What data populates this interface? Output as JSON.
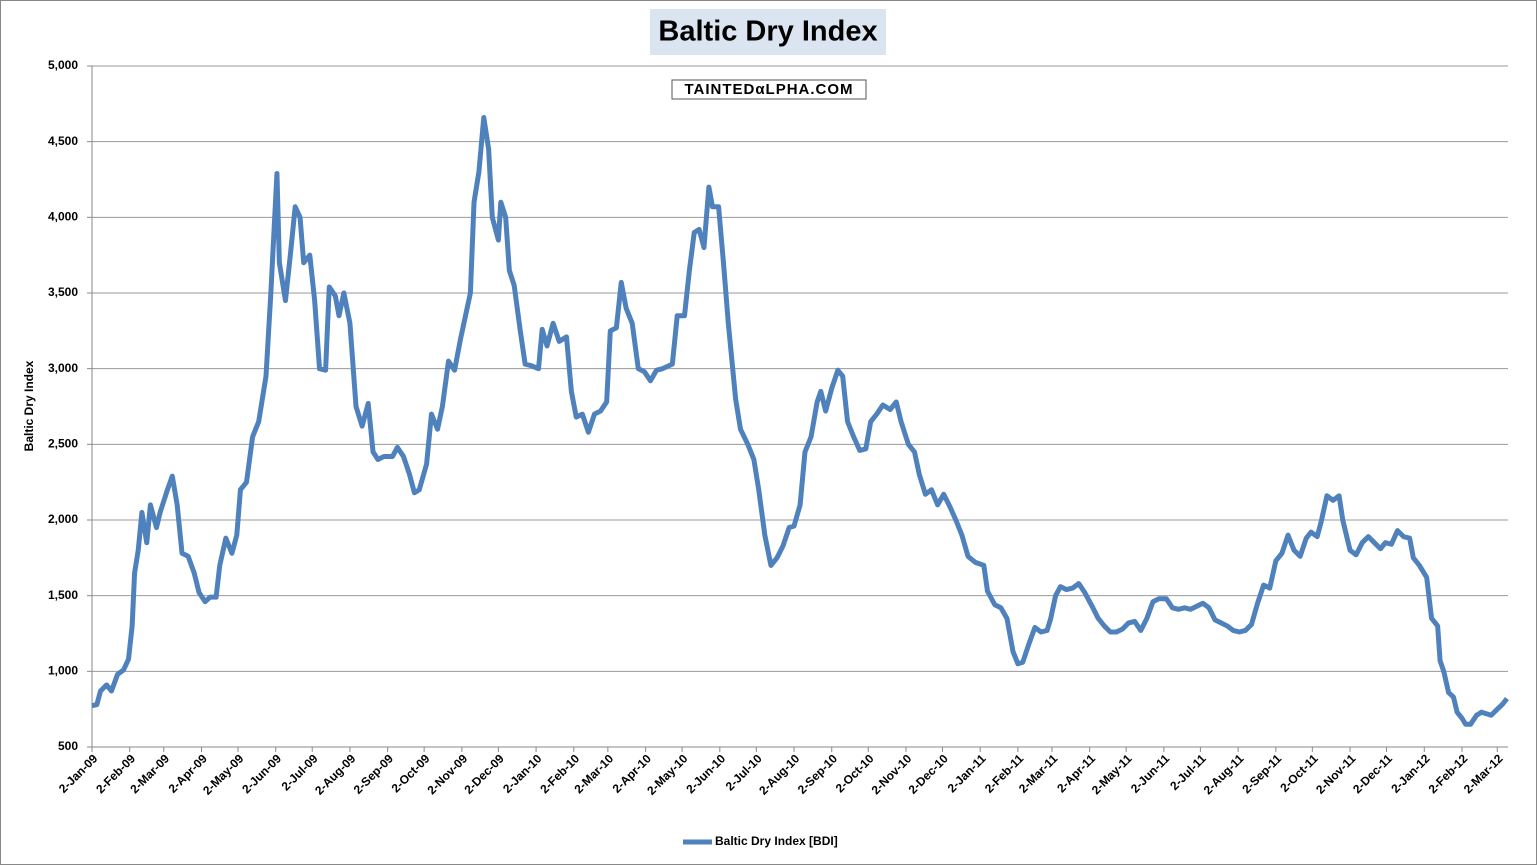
{
  "chart_data": {
    "type": "line",
    "title": "Baltic Dry Index",
    "annotation": "TAINTEDαLPHA.COM",
    "ylabel": "Baltic Dry Index",
    "grid": true,
    "legend": "bottom",
    "ylim": [
      500,
      5000
    ],
    "yticks": [
      500,
      {
        "value": 1000,
        "label": "1,000"
      },
      {
        "value": 1500,
        "label": "1,500"
      },
      {
        "value": 2000,
        "label": "2,000"
      },
      {
        "value": 2500,
        "label": "2,500"
      },
      {
        "value": 3000,
        "label": "3,000"
      },
      {
        "value": 3500,
        "label": "3,500"
      },
      {
        "value": 4000,
        "label": "4,000"
      },
      {
        "value": 4500,
        "label": "4,500"
      },
      {
        "value": 5000,
        "label": "5,000"
      }
    ],
    "xlim": [
      "2009-01-02",
      "2012-03-10"
    ],
    "xticks": [
      {
        "value": "2009-01-02",
        "label": "2-Jan-09"
      },
      {
        "value": "2009-02-02",
        "label": "2-Feb-09"
      },
      {
        "value": "2009-03-02",
        "label": "2-Mar-09"
      },
      {
        "value": "2009-04-02",
        "label": "2-Apr-09"
      },
      {
        "value": "2009-05-02",
        "label": "2-May-09"
      },
      {
        "value": "2009-06-02",
        "label": "2-Jun-09"
      },
      {
        "value": "2009-07-02",
        "label": "2-Jul-09"
      },
      {
        "value": "2009-08-02",
        "label": "2-Aug-09"
      },
      {
        "value": "2009-09-02",
        "label": "2-Sep-09"
      },
      {
        "value": "2009-10-02",
        "label": "2-Oct-09"
      },
      {
        "value": "2009-11-02",
        "label": "2-Nov-09"
      },
      {
        "value": "2009-12-02",
        "label": "2-Dec-09"
      },
      {
        "value": "2010-01-02",
        "label": "2-Jan-10"
      },
      {
        "value": "2010-02-02",
        "label": "2-Feb-10"
      },
      {
        "value": "2010-03-02",
        "label": "2-Mar-10"
      },
      {
        "value": "2010-04-02",
        "label": "2-Apr-10"
      },
      {
        "value": "2010-05-02",
        "label": "2-May-10"
      },
      {
        "value": "2010-06-02",
        "label": "2-Jun-10"
      },
      {
        "value": "2010-07-02",
        "label": "2-Jul-10"
      },
      {
        "value": "2010-08-02",
        "label": "2-Aug-10"
      },
      {
        "value": "2010-09-02",
        "label": "2-Sep-10"
      },
      {
        "value": "2010-10-02",
        "label": "2-Oct-10"
      },
      {
        "value": "2010-11-02",
        "label": "2-Nov-10"
      },
      {
        "value": "2010-12-02",
        "label": "2-Dec-10"
      },
      {
        "value": "2011-01-02",
        "label": "2-Jan-11"
      },
      {
        "value": "2011-02-02",
        "label": "2-Feb-11"
      },
      {
        "value": "2011-03-02",
        "label": "2-Mar-11"
      },
      {
        "value": "2011-04-02",
        "label": "2-Apr-11"
      },
      {
        "value": "2011-05-02",
        "label": "2-May-11"
      },
      {
        "value": "2011-06-02",
        "label": "2-Jun-11"
      },
      {
        "value": "2011-07-02",
        "label": "2-Jul-11"
      },
      {
        "value": "2011-08-02",
        "label": "2-Aug-11"
      },
      {
        "value": "2011-09-02",
        "label": "2-Sep-11"
      },
      {
        "value": "2011-10-02",
        "label": "2-Oct-11"
      },
      {
        "value": "2011-11-02",
        "label": "2-Nov-11"
      },
      {
        "value": "2011-12-02",
        "label": "2-Dec-11"
      },
      {
        "value": "2012-01-02",
        "label": "2-Jan-12"
      },
      {
        "value": "2012-02-02",
        "label": "2-Feb-12"
      },
      {
        "value": "2012-03-02",
        "label": "2-Mar-12"
      }
    ],
    "x": [
      "2009-01-02",
      "2009-01-06",
      "2009-01-09",
      "2009-01-14",
      "2009-01-18",
      "2009-01-23",
      "2009-01-28",
      "2009-02-01",
      "2009-02-04",
      "2009-02-06",
      "2009-02-09",
      "2009-02-12",
      "2009-02-16",
      "2009-02-19",
      "2009-02-24",
      "2009-02-27",
      "2009-03-05",
      "2009-03-09",
      "2009-03-13",
      "2009-03-17",
      "2009-03-22",
      "2009-03-27",
      "2009-03-31",
      "2009-04-05",
      "2009-04-09",
      "2009-04-14",
      "2009-04-17",
      "2009-04-22",
      "2009-04-27",
      "2009-05-01",
      "2009-05-04",
      "2009-05-09",
      "2009-05-14",
      "2009-05-19",
      "2009-05-22",
      "2009-05-25",
      "2009-05-29",
      "2009-06-03",
      "2009-06-05",
      "2009-06-10",
      "2009-06-14",
      "2009-06-18",
      "2009-06-22",
      "2009-06-25",
      "2009-06-30",
      "2009-07-04",
      "2009-07-08",
      "2009-07-13",
      "2009-07-16",
      "2009-07-21",
      "2009-07-24",
      "2009-07-28",
      "2009-08-02",
      "2009-08-07",
      "2009-08-12",
      "2009-08-17",
      "2009-08-21",
      "2009-08-25",
      "2009-08-30",
      "2009-09-06",
      "2009-09-10",
      "2009-09-15",
      "2009-09-20",
      "2009-09-24",
      "2009-09-28",
      "2009-10-04",
      "2009-10-08",
      "2009-10-13",
      "2009-10-17",
      "2009-10-22",
      "2009-10-27",
      "2009-11-01",
      "2009-11-05",
      "2009-11-09",
      "2009-11-12",
      "2009-11-16",
      "2009-11-20",
      "2009-11-24",
      "2009-11-27",
      "2009-12-02",
      "2009-12-04",
      "2009-12-08",
      "2009-12-11",
      "2009-12-15",
      "2009-12-20",
      "2009-12-24",
      "2009-12-29",
      "2010-01-04",
      "2010-01-07",
      "2010-01-11",
      "2010-01-16",
      "2010-01-21",
      "2010-01-27",
      "2010-01-31",
      "2010-02-04",
      "2010-02-09",
      "2010-02-14",
      "2010-02-19",
      "2010-02-24",
      "2010-03-01",
      "2010-03-04",
      "2010-03-09",
      "2010-03-13",
      "2010-03-17",
      "2010-03-22",
      "2010-03-27",
      "2010-04-01",
      "2010-04-06",
      "2010-04-11",
      "2010-04-16",
      "2010-04-24",
      "2010-04-28",
      "2010-05-04",
      "2010-05-08",
      "2010-05-12",
      "2010-05-16",
      "2010-05-20",
      "2010-05-24",
      "2010-05-27",
      "2010-06-01",
      "2010-06-05",
      "2010-06-09",
      "2010-06-15",
      "2010-06-19",
      "2010-06-25",
      "2010-06-30",
      "2010-07-04",
      "2010-07-09",
      "2010-07-14",
      "2010-07-19",
      "2010-07-24",
      "2010-07-29",
      "2010-08-02",
      "2010-08-07",
      "2010-08-11",
      "2010-08-16",
      "2010-08-21",
      "2010-08-24",
      "2010-08-28",
      "2010-09-02",
      "2010-09-07",
      "2010-09-11",
      "2010-09-15",
      "2010-09-20",
      "2010-09-25",
      "2010-09-30",
      "2010-10-04",
      "2010-10-09",
      "2010-10-14",
      "2010-10-20",
      "2010-10-25",
      "2010-10-29",
      "2010-11-04",
      "2010-11-09",
      "2010-11-13",
      "2010-11-18",
      "2010-11-23",
      "2010-11-28",
      "2010-12-03",
      "2010-12-08",
      "2010-12-13",
      "2010-12-18",
      "2010-12-23",
      "2010-12-29",
      "2011-01-05",
      "2011-01-08",
      "2011-01-14",
      "2011-01-19",
      "2011-01-24",
      "2011-01-29",
      "2011-02-02",
      "2011-02-06",
      "2011-02-11",
      "2011-02-16",
      "2011-02-21",
      "2011-02-26",
      "2011-03-01",
      "2011-03-05",
      "2011-03-09",
      "2011-03-14",
      "2011-03-19",
      "2011-03-24",
      "2011-03-29",
      "2011-04-04",
      "2011-04-09",
      "2011-04-14",
      "2011-04-19",
      "2011-04-24",
      "2011-04-29",
      "2011-05-04",
      "2011-05-09",
      "2011-05-14",
      "2011-05-19",
      "2011-05-24",
      "2011-05-29",
      "2011-06-04",
      "2011-06-09",
      "2011-06-14",
      "2011-06-19",
      "2011-06-24",
      "2011-06-29",
      "2011-07-04",
      "2011-07-09",
      "2011-07-14",
      "2011-07-19",
      "2011-07-24",
      "2011-07-29",
      "2011-08-03",
      "2011-08-08",
      "2011-08-13",
      "2011-08-18",
      "2011-08-23",
      "2011-08-28",
      "2011-09-02",
      "2011-09-07",
      "2011-09-12",
      "2011-09-17",
      "2011-09-22",
      "2011-09-27",
      "2011-10-01",
      "2011-10-06",
      "2011-10-09",
      "2011-10-14",
      "2011-10-19",
      "2011-10-24",
      "2011-10-27",
      "2011-11-02",
      "2011-11-07",
      "2011-11-12",
      "2011-11-17",
      "2011-11-22",
      "2011-11-27",
      "2011-12-01",
      "2011-12-06",
      "2011-12-11",
      "2011-12-16",
      "2011-12-21",
      "2011-12-24",
      "2011-12-29",
      "2012-01-04",
      "2012-01-08",
      "2012-01-13",
      "2012-01-15",
      "2012-01-18",
      "2012-01-22",
      "2012-01-26",
      "2012-01-29",
      "2012-02-02",
      "2012-02-05",
      "2012-02-09",
      "2012-02-14",
      "2012-02-18",
      "2012-02-22",
      "2012-02-26",
      "2012-03-02",
      "2012-03-06",
      "2012-03-10"
    ],
    "series": [
      {
        "name": "Baltic Dry Index [BDI]",
        "color": "#4f81bd",
        "values": [
          773,
          780,
          870,
          910,
          870,
          980,
          1010,
          1080,
          1300,
          1650,
          1800,
          2050,
          1850,
          2100,
          1950,
          2050,
          2200,
          2290,
          2100,
          1780,
          1760,
          1650,
          1520,
          1460,
          1490,
          1490,
          1700,
          1880,
          1780,
          1900,
          2200,
          2250,
          2550,
          2650,
          2800,
          2950,
          3500,
          4290,
          3700,
          3450,
          3750,
          4070,
          4000,
          3700,
          3750,
          3450,
          3000,
          2990,
          3540,
          3480,
          3350,
          3500,
          3300,
          2750,
          2620,
          2770,
          2450,
          2400,
          2420,
          2420,
          2480,
          2420,
          2300,
          2180,
          2200,
          2370,
          2700,
          2600,
          2750,
          3050,
          2990,
          3200,
          3350,
          3500,
          4100,
          4300,
          4660,
          4450,
          4000,
          3850,
          4100,
          4000,
          3650,
          3550,
          3250,
          3030,
          3020,
          3000,
          3260,
          3150,
          3300,
          3180,
          3210,
          2850,
          2680,
          2700,
          2580,
          2700,
          2720,
          2780,
          3250,
          3270,
          3570,
          3400,
          3300,
          3000,
          2980,
          2920,
          2990,
          3000,
          3030,
          3350,
          3350,
          3650,
          3900,
          3920,
          3800,
          4200,
          4070,
          4070,
          3700,
          3300,
          2800,
          2600,
          2500,
          2400,
          2200,
          1900,
          1700,
          1750,
          1830,
          1950,
          1960,
          2100,
          2450,
          2550,
          2780,
          2850,
          2720,
          2870,
          2990,
          2950,
          2650,
          2550,
          2460,
          2470,
          2650,
          2700,
          2760,
          2730,
          2780,
          2650,
          2500,
          2450,
          2300,
          2170,
          2200,
          2100,
          2170,
          2090,
          2000,
          1900,
          1760,
          1720,
          1700,
          1530,
          1440,
          1420,
          1350,
          1130,
          1050,
          1060,
          1180,
          1290,
          1260,
          1270,
          1350,
          1500,
          1560,
          1540,
          1550,
          1580,
          1520,
          1430,
          1350,
          1300,
          1260,
          1260,
          1280,
          1320,
          1330,
          1270,
          1350,
          1460,
          1480,
          1480,
          1420,
          1410,
          1420,
          1410,
          1430,
          1450,
          1420,
          1340,
          1320,
          1300,
          1270,
          1260,
          1270,
          1310,
          1450,
          1570,
          1550,
          1730,
          1780,
          1900,
          1800,
          1760,
          1880,
          1920,
          1890,
          1980,
          2160,
          2130,
          2160,
          2000,
          1800,
          1770,
          1850,
          1890,
          1850,
          1810,
          1850,
          1840,
          1930,
          1890,
          1880,
          1750,
          1700,
          1620,
          1350,
          1300,
          1070,
          1000,
          860,
          830,
          730,
          690,
          650,
          650,
          710,
          730,
          720,
          710,
          750,
          780,
          820
        ]
      }
    ]
  }
}
